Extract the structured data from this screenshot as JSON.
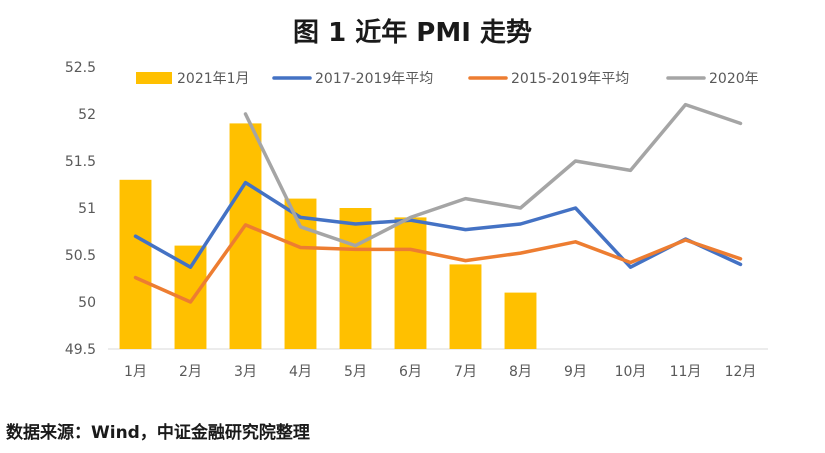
{
  "chart_data": {
    "type": "bar",
    "title": "图 1  近年 PMI 走势",
    "categories": [
      "1月",
      "2月",
      "3月",
      "4月",
      "5月",
      "6月",
      "7月",
      "8月",
      "9月",
      "10月",
      "11月",
      "12月"
    ],
    "ylim": [
      49.5,
      52.5
    ],
    "yticks": [
      "49.5",
      "50",
      "50.5",
      "51",
      "51.5",
      "52",
      "52.5"
    ],
    "xlabel": "",
    "ylabel": "",
    "legend_position": "top",
    "series": [
      {
        "name": "2021年1月",
        "type": "bar",
        "color": "#FFC000",
        "values": [
          51.3,
          50.6,
          51.9,
          51.1,
          51.0,
          50.9,
          50.4,
          50.1,
          null,
          null,
          null,
          null
        ]
      },
      {
        "name": "2017-2019年平均",
        "type": "line",
        "color": "#4472C4",
        "values": [
          50.7,
          50.37,
          51.27,
          50.9,
          50.83,
          50.87,
          50.77,
          50.83,
          51.0,
          50.37,
          50.67,
          50.4
        ]
      },
      {
        "name": "2015-2019年平均",
        "type": "line",
        "color": "#ED7D31",
        "values": [
          50.26,
          50.0,
          50.82,
          50.58,
          50.56,
          50.56,
          50.44,
          50.52,
          50.64,
          50.42,
          50.66,
          50.46
        ]
      },
      {
        "name": "2020年",
        "type": "line",
        "color": "#A5A5A5",
        "values": [
          null,
          null,
          52.0,
          50.8,
          50.6,
          50.9,
          51.1,
          51.0,
          51.5,
          51.4,
          52.1,
          51.9
        ]
      }
    ]
  },
  "source": "数据来源：Wind，中证金融研究院整理"
}
